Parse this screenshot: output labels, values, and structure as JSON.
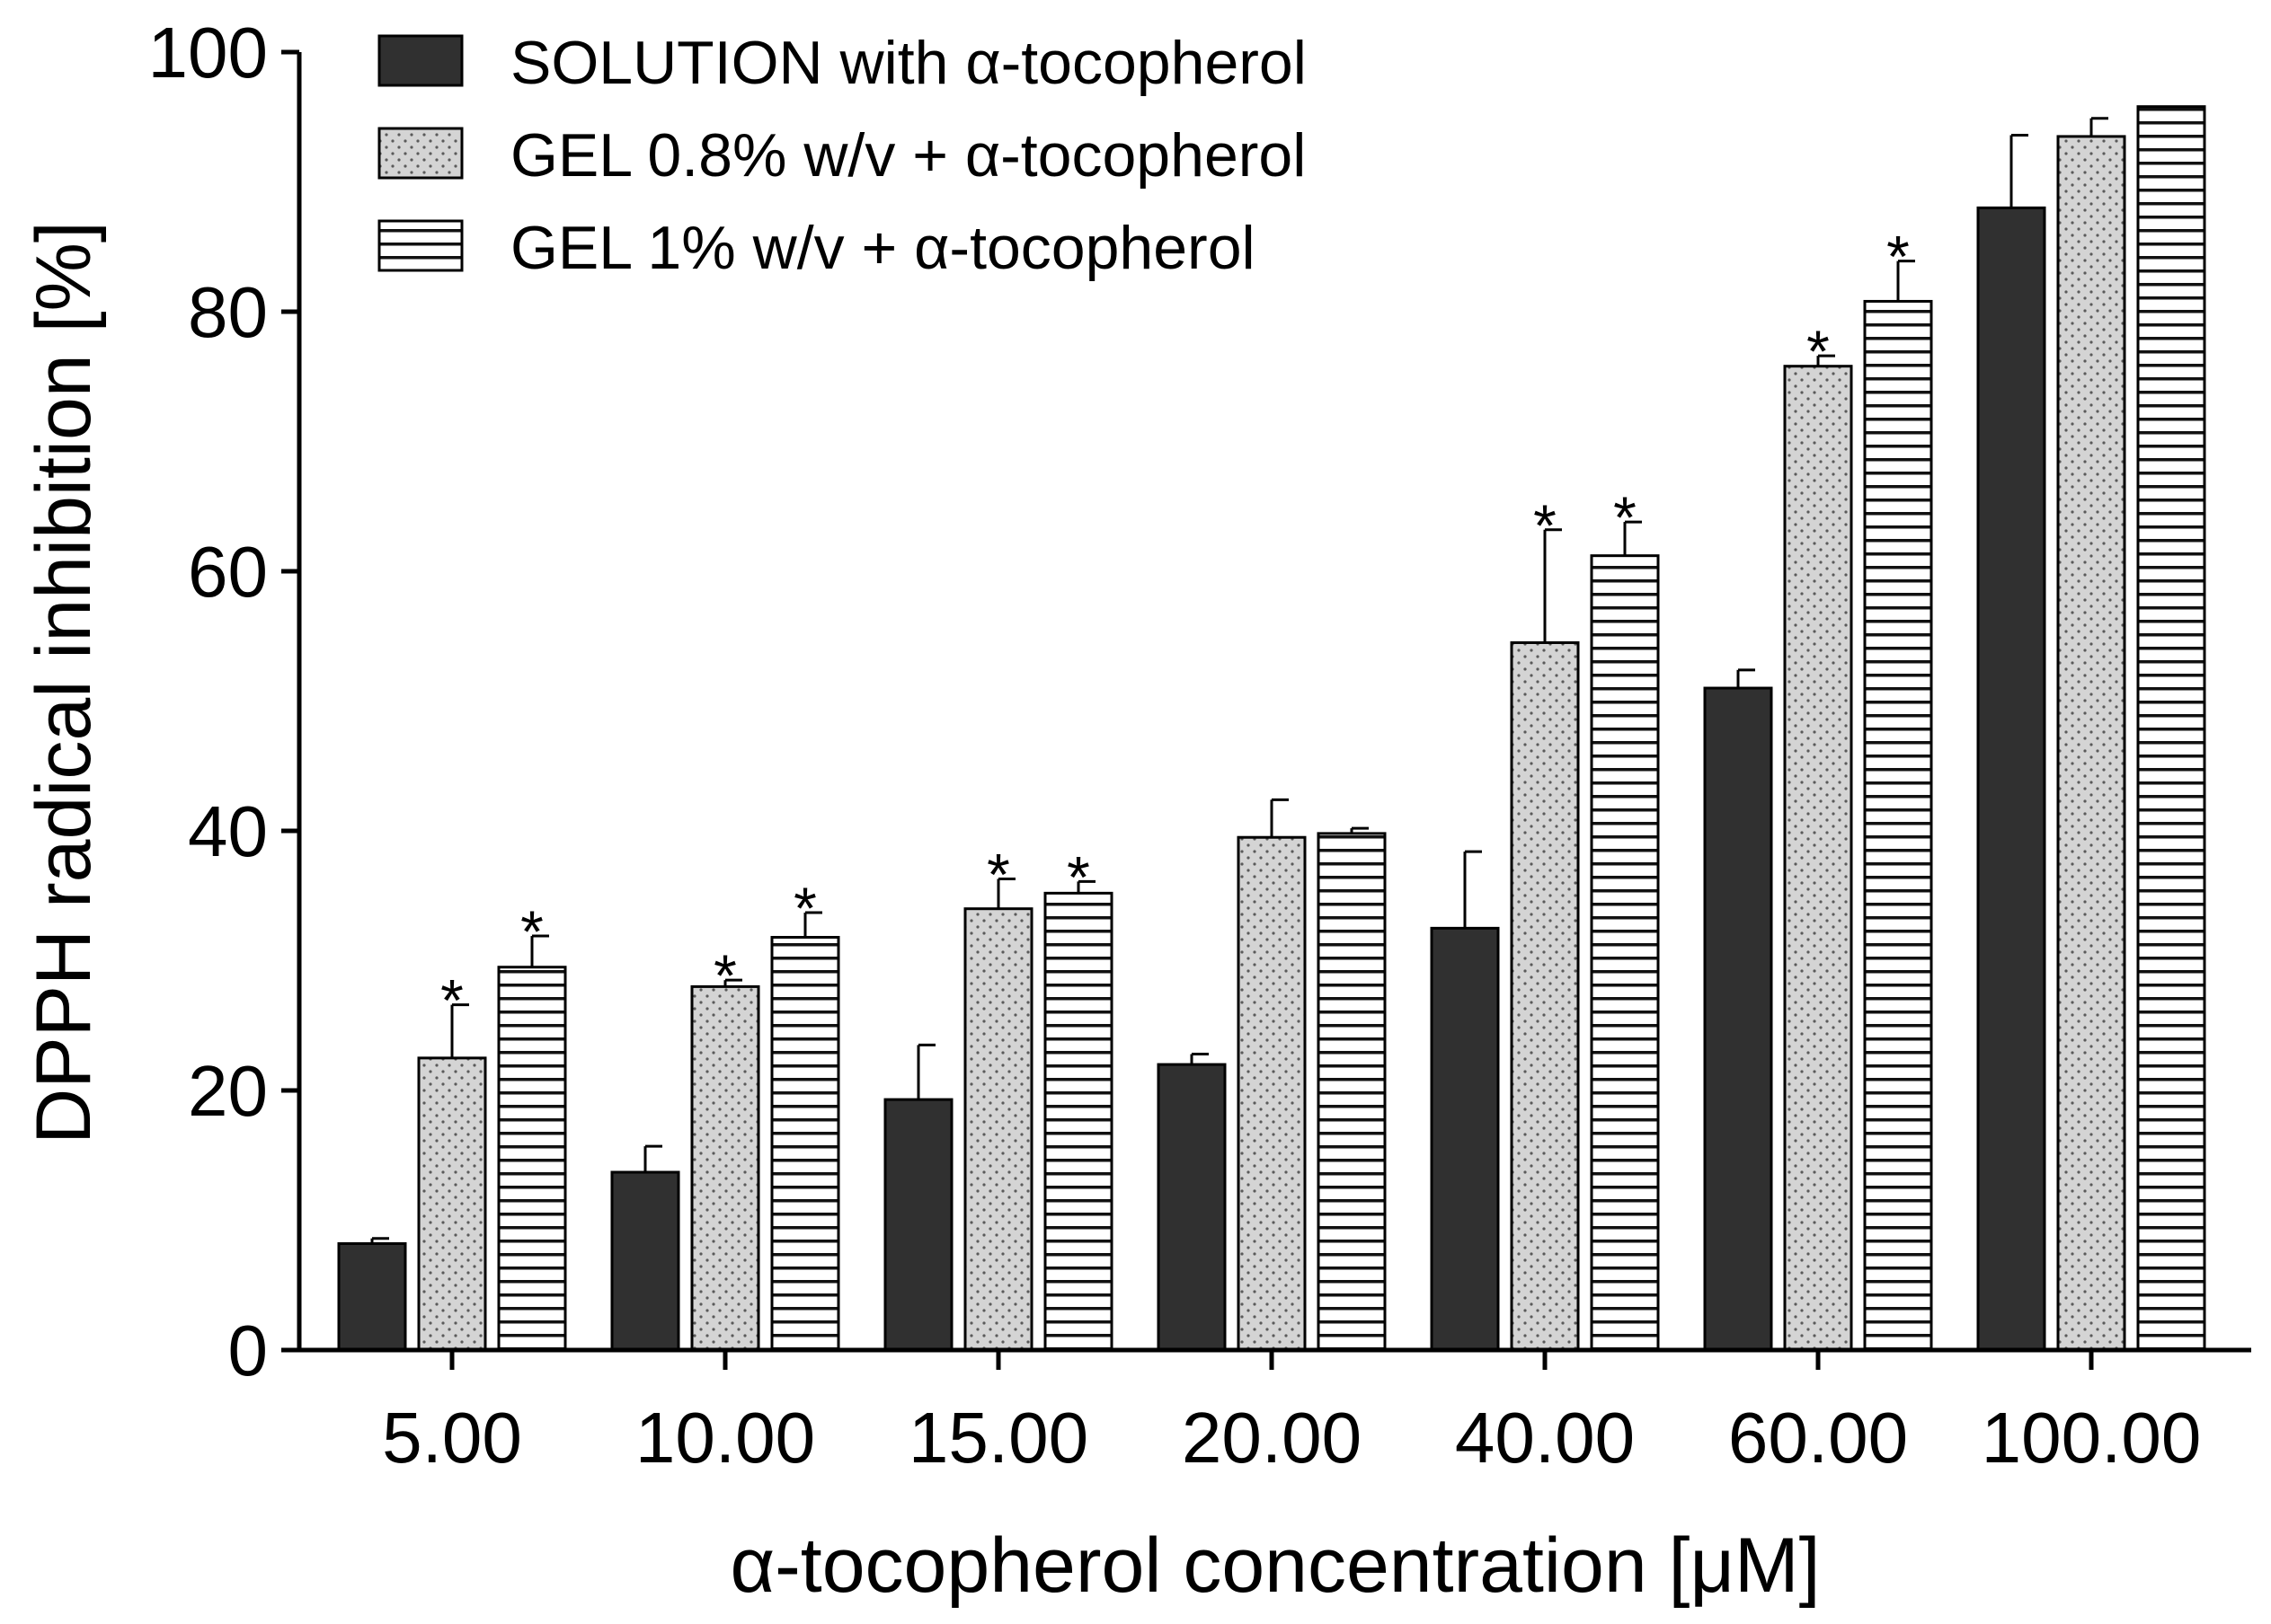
{
  "chart_data": {
    "type": "bar",
    "title": "",
    "xlabel": "α-tocopherol concentration [μM]",
    "ylabel": "DPPH radical inhibition [%]",
    "ylim": [
      0,
      100
    ],
    "yticks": [
      0,
      20,
      40,
      60,
      80,
      100
    ],
    "grid": false,
    "legend_position": "top-left",
    "categories": [
      "5.00",
      "10.00",
      "15.00",
      "20.00",
      "40.00",
      "60.00",
      "100.00"
    ],
    "series": [
      {
        "name": "SOLUTION with α-tocopherol",
        "fill": "#303030",
        "pattern": "solid",
        "values": [
          8.2,
          13.7,
          19.3,
          22.0,
          32.5,
          51.0,
          88.0
        ],
        "errors": [
          0.4,
          2.0,
          4.2,
          0.8,
          5.9,
          1.4,
          5.6
        ],
        "significant": [
          false,
          false,
          false,
          false,
          false,
          false,
          false
        ]
      },
      {
        "name": "GEL 0.8% w/v + α-tocopherol",
        "fill": "#d4d4d4",
        "pattern": "dots",
        "values": [
          22.5,
          28.0,
          34.0,
          39.5,
          54.5,
          75.8,
          93.5
        ],
        "errors": [
          4.1,
          0.5,
          2.3,
          2.9,
          8.7,
          0.8,
          1.4
        ],
        "significant": [
          true,
          true,
          true,
          false,
          true,
          true,
          false
        ]
      },
      {
        "name": "GEL 1% w/v + α-tocopherol",
        "fill": "#ffffff",
        "pattern": "horizontal-lines",
        "values": [
          29.5,
          31.8,
          35.2,
          39.8,
          61.2,
          80.8,
          95.8
        ],
        "errors": [
          2.4,
          1.9,
          0.9,
          0.4,
          2.6,
          3.1,
          0.0
        ],
        "significant": [
          true,
          true,
          true,
          false,
          true,
          true,
          false
        ]
      }
    ],
    "significance_marker": "*"
  }
}
